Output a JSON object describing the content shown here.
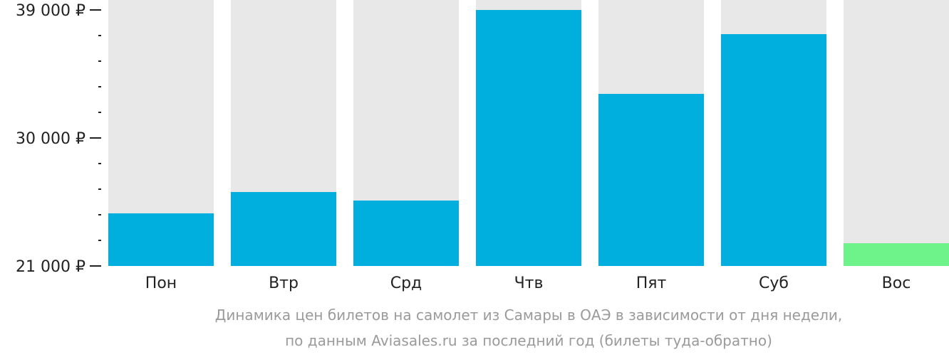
{
  "chart_data": {
    "type": "bar",
    "categories": [
      "Пон",
      "Втр",
      "Срд",
      "Чтв",
      "Пят",
      "Суб",
      "Вос"
    ],
    "values": [
      24700,
      26200,
      25600,
      39000,
      33100,
      37300,
      22600
    ],
    "ylim": [
      21000,
      39700
    ],
    "yticks": [
      {
        "value": 21000,
        "label": "21 000 ₽"
      },
      {
        "value": 30000,
        "label": "30 000 ₽"
      },
      {
        "value": 39000,
        "label": "39 000 ₽"
      }
    ],
    "minor_tick_step": 1800,
    "colors": {
      "bar": "#00afdd",
      "bar_min": "#6ef38a",
      "background_column": "#e8e8e8",
      "axis": "#222222"
    },
    "caption_lines": [
      "Динамика цен билетов на самолет из Самары в ОАЭ в зависимости от дня недели,",
      "по данным Aviasales.ru за последний год (билеты туда-обратно)"
    ]
  }
}
